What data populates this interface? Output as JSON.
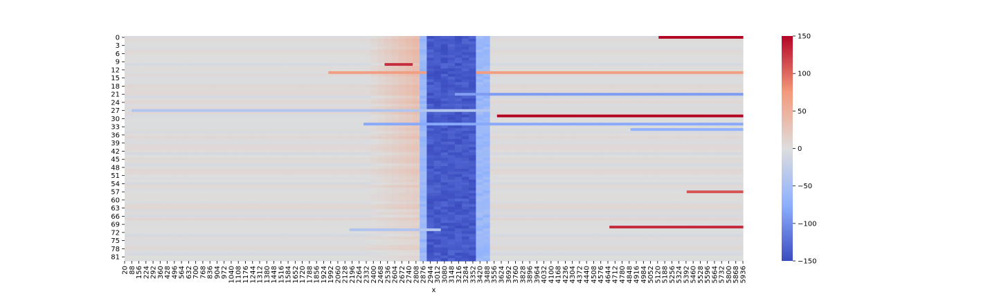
{
  "chart_data": {
    "type": "heatmap",
    "title": "",
    "xlabel": "x",
    "ylabel": "",
    "x_ticks": [
      "20",
      "88",
      "156",
      "224",
      "292",
      "360",
      "428",
      "496",
      "564",
      "632",
      "700",
      "768",
      "836",
      "904",
      "972",
      "1040",
      "1108",
      "1176",
      "1244",
      "1312",
      "1380",
      "1448",
      "1516",
      "1584",
      "1652",
      "1720",
      "1788",
      "1856",
      "1924",
      "1992",
      "2060",
      "2128",
      "2196",
      "2264",
      "2332",
      "2400",
      "2468",
      "2536",
      "2604",
      "2672",
      "2740",
      "2808",
      "2876",
      "2944",
      "3012",
      "3080",
      "3148",
      "3216",
      "3284",
      "3352",
      "3420",
      "3488",
      "3556",
      "3624",
      "3692",
      "3760",
      "3828",
      "3896",
      "3964",
      "4032",
      "4100",
      "4168",
      "4236",
      "4304",
      "4372",
      "4440",
      "4508",
      "4576",
      "4644",
      "4712",
      "4780",
      "4848",
      "4916",
      "4984",
      "5052",
      "5120",
      "5188",
      "5256",
      "5324",
      "5392",
      "5460",
      "5528",
      "5596",
      "5664",
      "5732",
      "5800",
      "5868",
      "5936"
    ],
    "y_ticks": [
      "0",
      "3",
      "6",
      "9",
      "12",
      "15",
      "18",
      "21",
      "24",
      "27",
      "30",
      "33",
      "36",
      "39",
      "42",
      "45",
      "48",
      "51",
      "54",
      "57",
      "60",
      "63",
      "66",
      "69",
      "72",
      "75",
      "78",
      "81"
    ],
    "x_range": [
      20,
      5936
    ],
    "y_range": [
      0,
      82
    ],
    "rows": 83,
    "colorscale": "coolwarm",
    "colorbar": {
      "vmin": -150,
      "vmax": 150,
      "ticks": [
        "150",
        "100",
        "50",
        "0",
        "−50",
        "−100",
        "−150"
      ]
    },
    "features": {
      "cold_band": {
        "x_from": 2876,
        "x_to": 3488,
        "core_x_from": 2944,
        "core_x_to": 3352,
        "value": -140
      },
      "warm_band": {
        "x_from": 2332,
        "x_to": 2876,
        "value": 45
      },
      "hot_streaks": [
        {
          "row": 0,
          "x_from": 5120,
          "x_to": 5936,
          "value": 150
        },
        {
          "row": 29,
          "x_from": 3556,
          "x_to": 5936,
          "value": 150
        },
        {
          "row": 57,
          "x_from": 5392,
          "x_to": 5936,
          "value": 110
        },
        {
          "row": 70,
          "x_from": 4644,
          "x_to": 5936,
          "value": 130
        },
        {
          "row": 13,
          "x_from": 1992,
          "x_to": 5936,
          "value": 70
        },
        {
          "row": 10,
          "x_from": 2536,
          "x_to": 2808,
          "value": 130
        }
      ],
      "cool_streaks": [
        {
          "row": 21,
          "x_from": 3148,
          "x_to": 5936,
          "value": -90
        },
        {
          "row": 32,
          "x_from": 2332,
          "x_to": 5936,
          "value": -80
        },
        {
          "row": 34,
          "x_from": 4848,
          "x_to": 5936,
          "value": -70
        },
        {
          "row": 27,
          "x_from": 88,
          "x_to": 3488,
          "value": -40
        },
        {
          "row": 71,
          "x_from": 2196,
          "x_to": 3012,
          "value": -40
        }
      ]
    }
  }
}
